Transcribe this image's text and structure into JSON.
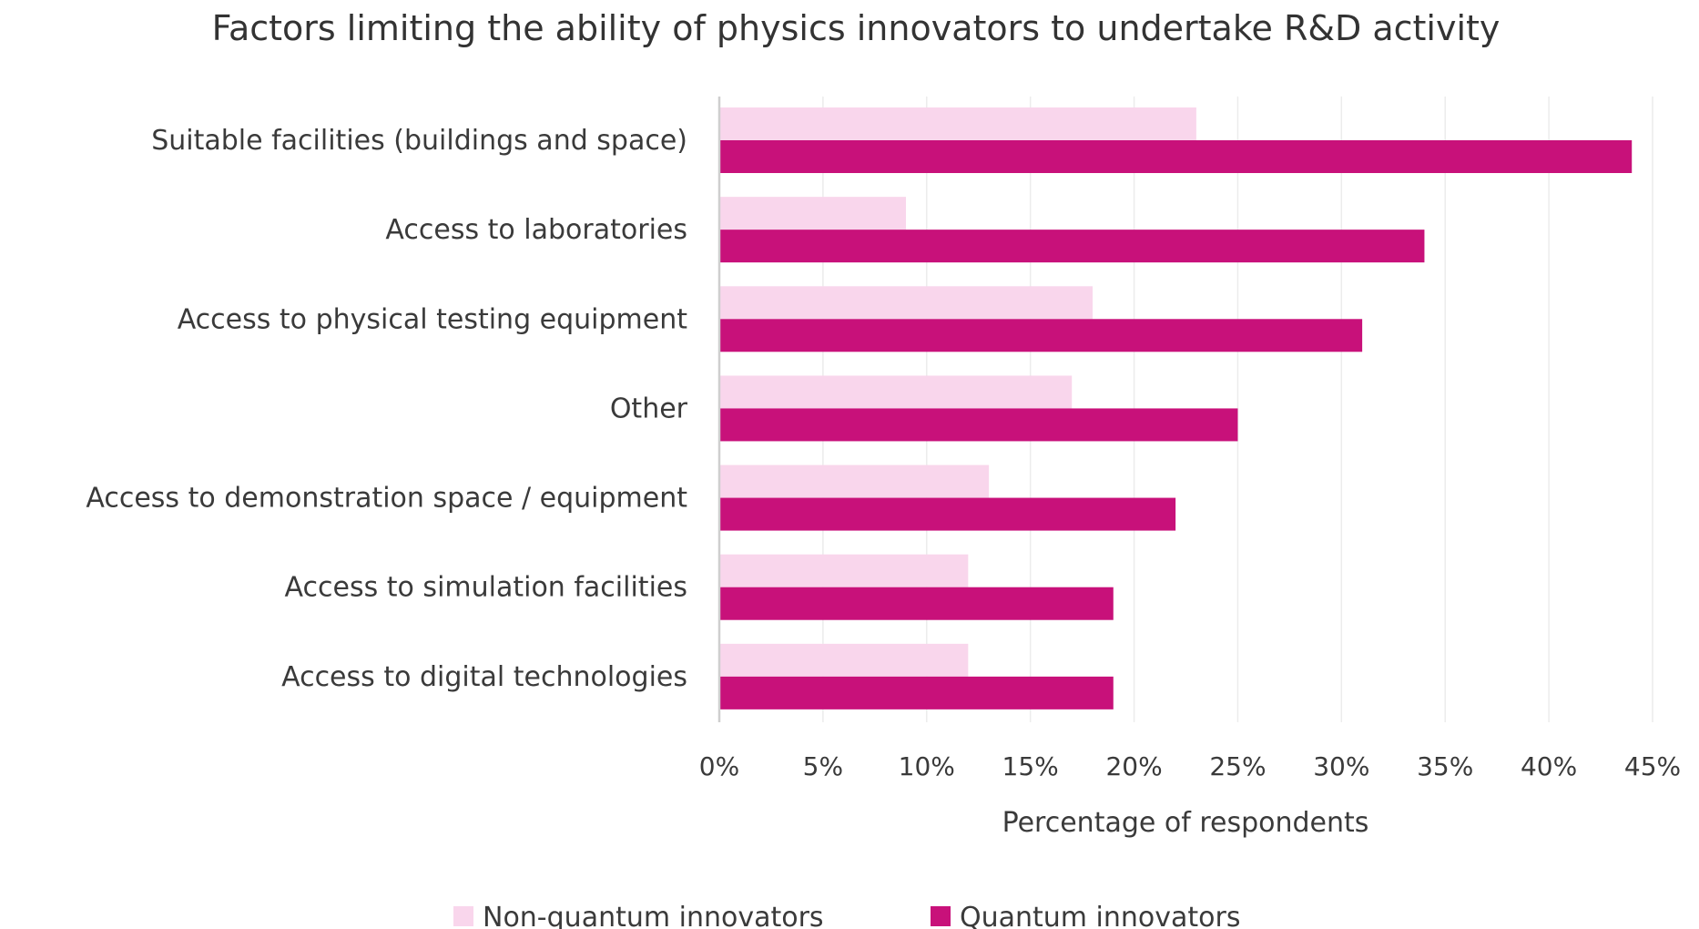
{
  "chart_data": {
    "type": "bar",
    "orientation": "horizontal",
    "title": "Factors limiting the ability of physics innovators to undertake R&D activity",
    "xlabel": "Percentage of respondents",
    "ylabel": "",
    "xlim": [
      0,
      45
    ],
    "x_ticks": [
      "0%",
      "5%",
      "10%",
      "15%",
      "20%",
      "25%",
      "30%",
      "35%",
      "40%",
      "45%"
    ],
    "categories": [
      "Suitable facilities (buildings and space)",
      "Access to laboratories",
      "Access to physical testing equipment",
      "Other",
      "Access to demonstration space / equipment",
      "Access to simulation facilities",
      "Access to digital technologies"
    ],
    "series": [
      {
        "name": "Non-quantum innovators",
        "color": "#f9d6ec",
        "values": [
          23,
          9,
          18,
          17,
          13,
          12,
          12
        ]
      },
      {
        "name": "Quantum innovators",
        "color": "#c8117a",
        "values": [
          44,
          34,
          31,
          25,
          22,
          19,
          19
        ]
      }
    ],
    "grid": true,
    "legend_position": "bottom"
  }
}
